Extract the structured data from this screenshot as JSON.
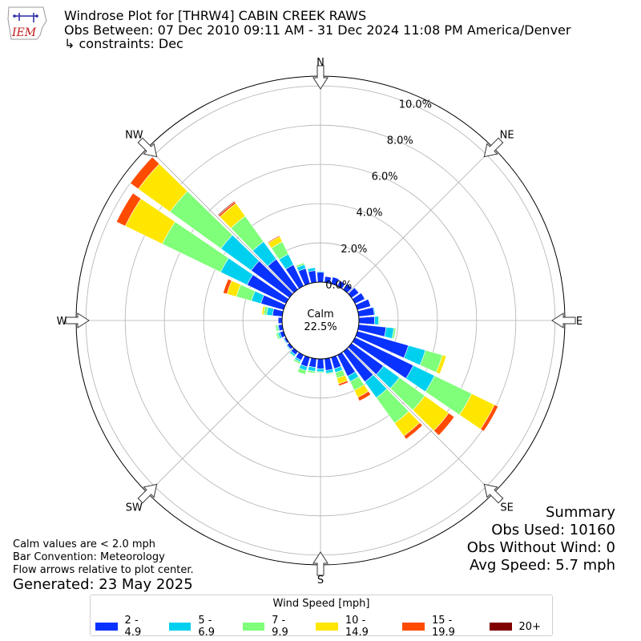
{
  "header": {
    "logo_text": "IEM",
    "title": "Windrose Plot for [THRW4] CABIN CREEK RAWS",
    "subtitle": "Obs Between: 07 Dec 2010 09:11 AM - 31 Dec 2024 11:08 PM America/Denver",
    "constraints": "↳ constraints: Dec"
  },
  "calm": {
    "label": "Calm",
    "value": "22.5%"
  },
  "directions": [
    "N",
    "NE",
    "E",
    "SE",
    "S",
    "SW",
    "W",
    "NW"
  ],
  "summary": {
    "title": "Summary",
    "obs_used": "Obs Used: 10160",
    "obs_without_wind": "Obs Without Wind: 0",
    "avg_speed": "Avg Speed: 5.7 mph"
  },
  "notes": {
    "calm_note": "Calm values are < 2.0 mph",
    "bar_convention": "Bar Convention: Meteorology",
    "flow_arrows": "Flow arrows relative to plot center.",
    "generated": "Generated: 23 May 2025"
  },
  "legend": {
    "title": "Wind Speed [mph]",
    "items": [
      {
        "label": "2 - 4.9",
        "color": "#0a32ff"
      },
      {
        "label": "5 - 6.9",
        "color": "#00d0f0"
      },
      {
        "label": "7 - 9.9",
        "color": "#80ff7a"
      },
      {
        "label": "10 - 14.9",
        "color": "#ffe600"
      },
      {
        "label": "15 - 19.9",
        "color": "#ff4b00"
      },
      {
        "label": "20+",
        "color": "#800000"
      }
    ]
  },
  "chart_data": {
    "type": "windrose",
    "radial_unit": "%",
    "radial_ticks": [
      "0.0%",
      "2.0%",
      "4.0%",
      "6.0%",
      "8.0%",
      "10.0%"
    ],
    "radial_max": 10.5,
    "calm_percent": 22.5,
    "series_names": [
      "2 - 4.9",
      "5 - 6.9",
      "7 - 9.9",
      "10 - 14.9",
      "15 - 19.9",
      "20+"
    ],
    "bins": [
      {
        "dir": 0,
        "values": [
          0.5,
          0.05,
          0,
          0,
          0,
          0
        ]
      },
      {
        "dir": 10,
        "values": [
          0.3,
          0,
          0,
          0,
          0,
          0
        ]
      },
      {
        "dir": 20,
        "values": [
          0.35,
          0,
          0,
          0,
          0,
          0
        ]
      },
      {
        "dir": 30,
        "values": [
          0.3,
          0,
          0,
          0,
          0,
          0
        ]
      },
      {
        "dir": 40,
        "values": [
          0.35,
          0,
          0,
          0,
          0,
          0
        ]
      },
      {
        "dir": 50,
        "values": [
          0.45,
          0,
          0,
          0,
          0,
          0
        ]
      },
      {
        "dir": 60,
        "values": [
          0.55,
          0,
          0,
          0,
          0,
          0
        ]
      },
      {
        "dir": 70,
        "values": [
          0.7,
          0,
          0,
          0,
          0,
          0
        ]
      },
      {
        "dir": 80,
        "values": [
          0.8,
          0.05,
          0,
          0,
          0,
          0
        ]
      },
      {
        "dir": 90,
        "values": [
          0.8,
          0.2,
          0.05,
          0,
          0,
          0
        ]
      },
      {
        "dir": 100,
        "values": [
          1.4,
          0.4,
          0.1,
          0,
          0,
          0
        ]
      },
      {
        "dir": 110,
        "values": [
          2.7,
          0.9,
          0.9,
          0.2,
          0,
          0
        ]
      },
      {
        "dir": 120,
        "values": [
          3.3,
          1.2,
          2.1,
          1.3,
          0.2,
          0
        ]
      },
      {
        "dir": 130,
        "values": [
          2.0,
          1.0,
          1.6,
          1.5,
          0.35,
          0
        ]
      },
      {
        "dir": 140,
        "values": [
          1.9,
          1.0,
          1.6,
          0.8,
          0.2,
          0
        ]
      },
      {
        "dir": 150,
        "values": [
          1.2,
          0.3,
          0.5,
          0.4,
          0.2,
          0
        ]
      },
      {
        "dir": 160,
        "values": [
          0.6,
          0.2,
          0.3,
          0.3,
          0.1,
          0
        ]
      },
      {
        "dir": 170,
        "values": [
          0.6,
          0.15,
          0.05,
          0,
          0,
          0
        ]
      },
      {
        "dir": 180,
        "values": [
          0.5,
          0.15,
          0.05,
          0,
          0,
          0
        ]
      },
      {
        "dir": 190,
        "values": [
          0.45,
          0.2,
          0.1,
          0,
          0,
          0
        ]
      },
      {
        "dir": 200,
        "values": [
          0.5,
          0.2,
          0.2,
          0,
          0,
          0
        ]
      },
      {
        "dir": 210,
        "values": [
          0.3,
          0.1,
          0.1,
          0,
          0,
          0
        ]
      },
      {
        "dir": 220,
        "values": [
          0.2,
          0.1,
          0.05,
          0,
          0,
          0
        ]
      },
      {
        "dir": 230,
        "values": [
          0.15,
          0.05,
          0,
          0,
          0,
          0
        ]
      },
      {
        "dir": 240,
        "values": [
          0.1,
          0.05,
          0,
          0,
          0,
          0
        ]
      },
      {
        "dir": 250,
        "values": [
          0.2,
          0.1,
          0.1,
          0,
          0,
          0
        ]
      },
      {
        "dir": 260,
        "values": [
          0.2,
          0.05,
          0.1,
          0,
          0,
          0
        ]
      },
      {
        "dir": 270,
        "values": [
          0.2,
          0,
          0,
          0,
          0,
          0
        ]
      },
      {
        "dir": 280,
        "values": [
          0.5,
          0.3,
          0.15,
          0.1,
          0,
          0
        ]
      },
      {
        "dir": 290,
        "values": [
          1.2,
          0.5,
          0.8,
          0.5,
          0.2,
          0
        ]
      },
      {
        "dir": 300,
        "values": [
          2.2,
          1.5,
          3.3,
          2.1,
          0.5,
          0
        ]
      },
      {
        "dir": 310,
        "values": [
          2.4,
          1.9,
          3.2,
          2.0,
          0.5,
          0
        ]
      },
      {
        "dir": 320,
        "values": [
          1.9,
          1.1,
          1.6,
          0.8,
          0.1,
          0.05
        ]
      },
      {
        "dir": 330,
        "values": [
          1.2,
          0.6,
          0.7,
          0.3,
          0.05,
          0
        ]
      },
      {
        "dir": 340,
        "values": [
          0.8,
          0.2,
          0.1,
          0,
          0,
          0
        ]
      },
      {
        "dir": 350,
        "values": [
          0.6,
          0.15,
          0,
          0,
          0,
          0
        ]
      }
    ]
  }
}
